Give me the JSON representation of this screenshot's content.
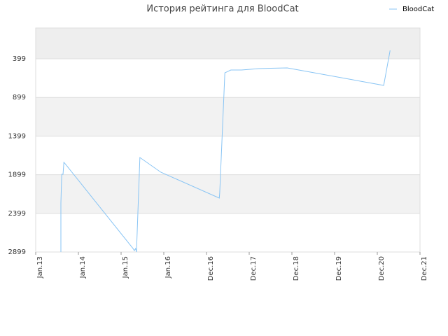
{
  "chart_data": {
    "type": "line",
    "title": "История рейтинга для BloodCat",
    "x": [
      0.59,
      0.59,
      0.61,
      0.64,
      0.66,
      0.69,
      2.28,
      2.31,
      2.34,
      2.36,
      2.44,
      2.93,
      4.3,
      4.31,
      4.43,
      4.57,
      4.82,
      5.23,
      5.89,
      8.15,
      8.3
    ],
    "series": [
      {
        "name": "BloodCat",
        "color": "#88c4f4",
        "values": [
          2899,
          2265,
          1893,
          1893,
          1739,
          1757,
          2854,
          2881,
          2854,
          2899,
          1676,
          1866,
          2201,
          2129,
          580,
          544,
          544,
          525,
          516,
          743,
          290
        ]
      }
    ],
    "xlim": [
      0,
      9
    ],
    "xticks": [
      {
        "value": 0,
        "label": "Jan.13"
      },
      {
        "value": 1,
        "label": "Jan.14"
      },
      {
        "value": 2,
        "label": "Jan.15"
      },
      {
        "value": 3,
        "label": "Jan.16"
      },
      {
        "value": 4,
        "label": "Dec.16"
      },
      {
        "value": 5,
        "label": "Dec.17"
      },
      {
        "value": 6,
        "label": "Dec.18"
      },
      {
        "value": 7,
        "label": "Dec.19"
      },
      {
        "value": 8,
        "label": "Dec.20"
      },
      {
        "value": 9,
        "label": "Dec.21"
      }
    ],
    "ylim": [
      2899,
      0
    ],
    "yticks": [
      399,
      899,
      1399,
      1899,
      2399,
      2899
    ],
    "grid": true,
    "bands": true,
    "legend": "top-right"
  }
}
